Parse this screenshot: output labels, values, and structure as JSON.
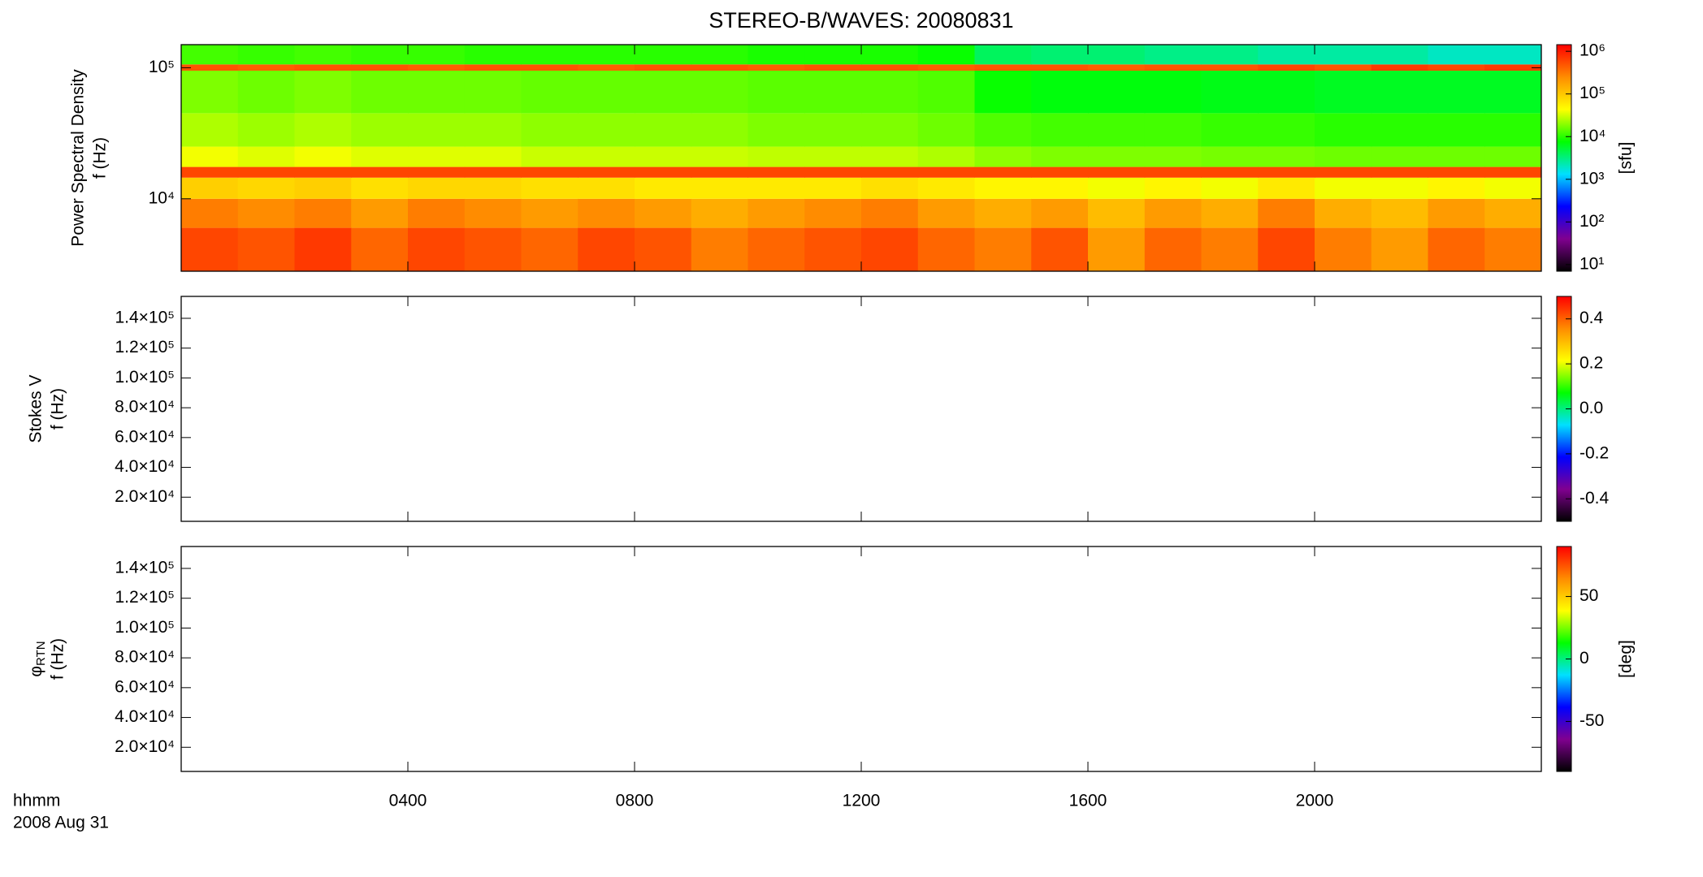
{
  "chart_data": [
    {
      "type": "heatmap",
      "title": "STEREO-B/WAVES: 20080831",
      "ylabel": [
        "Power Spectral Density",
        "f (Hz)"
      ],
      "ylog": true,
      "ylim": [
        2800,
        150000
      ],
      "yticks": [
        {
          "value": 10000,
          "label": "10⁴"
        },
        {
          "value": 100000,
          "label": "10⁵"
        }
      ],
      "xlim": [
        0,
        24
      ],
      "x_edges": [
        0,
        1,
        2,
        3,
        4,
        5,
        6,
        7,
        8,
        9,
        10,
        11,
        12,
        13,
        14,
        15,
        16,
        17,
        18,
        19,
        20,
        21,
        22,
        23,
        24
      ],
      "y_edges": [
        2800,
        6000,
        10000,
        14500,
        17500,
        25000,
        45000,
        95000,
        106000,
        150000
      ],
      "z": [
        [
          600000,
          500000,
          700000,
          400000,
          600000,
          500000,
          400000,
          600000,
          500000,
          300000,
          400000,
          500000,
          600000,
          400000,
          300000,
          500000,
          200000,
          400000,
          300000,
          600000,
          300000,
          200000,
          400000,
          300000
        ],
        [
          300000,
          250000,
          300000,
          200000,
          300000,
          250000,
          200000,
          250000,
          200000,
          150000,
          200000,
          250000,
          300000,
          200000,
          150000,
          200000,
          120000,
          200000,
          150000,
          300000,
          150000,
          120000,
          200000,
          150000
        ],
        [
          90000,
          80000,
          90000,
          70000,
          80000,
          80000,
          70000,
          70000,
          60000,
          60000,
          60000,
          60000,
          70000,
          60000,
          50000,
          50000,
          40000,
          50000,
          40000,
          60000,
          40000,
          40000,
          50000,
          40000
        ],
        [
          600000,
          600000,
          600000,
          600000,
          600000,
          600000,
          600000,
          600000,
          600000,
          600000,
          600000,
          600000,
          600000,
          600000,
          600000,
          600000,
          600000,
          600000,
          600000,
          600000,
          600000,
          600000,
          600000,
          600000
        ],
        [
          40000,
          35000,
          40000,
          35000,
          35000,
          35000,
          30000,
          30000,
          30000,
          30000,
          28000,
          28000,
          28000,
          25000,
          20000,
          18000,
          18000,
          18000,
          17000,
          17000,
          16000,
          16000,
          16000,
          16000
        ],
        [
          25000,
          22000,
          25000,
          22000,
          22000,
          22000,
          20000,
          20000,
          20000,
          20000,
          18000,
          18000,
          18000,
          16000,
          13000,
          12000,
          12000,
          12000,
          11000,
          11000,
          10000,
          10000,
          10000,
          10000
        ],
        [
          18000,
          16000,
          18000,
          16000,
          16000,
          16000,
          15000,
          15000,
          15000,
          15000,
          14000,
          14000,
          14000,
          13000,
          8000,
          7000,
          7000,
          7000,
          6500,
          6500,
          6000,
          6000,
          6000,
          6000
        ],
        [
          500000,
          450000,
          500000,
          500000,
          450000,
          500000,
          500000,
          450000,
          500000,
          500000,
          450000,
          500000,
          500000,
          450000,
          500000,
          500000,
          450000,
          500000,
          500000,
          600000,
          500000,
          700000,
          600000,
          700000
        ],
        [
          12000,
          11000,
          12000,
          11000,
          11000,
          10000,
          10000,
          10000,
          10000,
          10000,
          9000,
          9000,
          9000,
          8000,
          4000,
          3500,
          3500,
          3000,
          3000,
          2500,
          2500,
          2500,
          2000,
          2000
        ]
      ],
      "zlog": true,
      "zlim": [
        7,
        1430000
      ],
      "zticks": [
        {
          "value": 10,
          "label": "10¹"
        },
        {
          "value": 100,
          "label": "10²"
        },
        {
          "value": 1000,
          "label": "10³"
        },
        {
          "value": 10000,
          "label": "10⁴"
        },
        {
          "value": 100000,
          "label": "10⁵"
        },
        {
          "value": 1000000,
          "label": "10⁶"
        }
      ],
      "colorbar_label": "[sfu]",
      "colorscale": [
        "#000000",
        "#800090",
        "#0000ff",
        "#00e0ff",
        "#00ff00",
        "#ffff00",
        "#ff8c00",
        "#ff0000"
      ]
    },
    {
      "type": "heatmap",
      "ylabel": [
        "Stokes V",
        "f (Hz)"
      ],
      "ylog": false,
      "ylim": [
        3800,
        154700
      ],
      "yticks": [
        {
          "value": 20000,
          "label": "2.0×10⁴"
        },
        {
          "value": 40000,
          "label": "4.0×10⁴"
        },
        {
          "value": 60000,
          "label": "6.0×10⁴"
        },
        {
          "value": 80000,
          "label": "8.0×10⁴"
        },
        {
          "value": 100000,
          "label": "1.0×10⁵"
        },
        {
          "value": 120000,
          "label": "1.2×10⁵"
        },
        {
          "value": 140000,
          "label": "1.4×10⁵"
        }
      ],
      "xlim": [
        0,
        24
      ],
      "zlog": false,
      "zlim": [
        -0.5,
        0.5
      ],
      "zticks": [
        -0.4,
        -0.2,
        {
          "value": 0,
          "label": "0.0"
        },
        0.2,
        0.4
      ],
      "colorscale": [
        "#000000",
        "#800090",
        "#0000ff",
        "#00e0ff",
        "#00ff00",
        "#ffff00",
        "#ff8c00",
        "#ff0000"
      ]
    },
    {
      "type": "heatmap",
      "ylabel_symbol": "φ",
      "ylabel_subscript": "RTN",
      "ylabel": [
        "f (Hz)"
      ],
      "ylog": false,
      "ylim": [
        3800,
        154700
      ],
      "yticks": [
        {
          "value": 20000,
          "label": "2.0×10⁴"
        },
        {
          "value": 40000,
          "label": "4.0×10⁴"
        },
        {
          "value": 60000,
          "label": "6.0×10⁴"
        },
        {
          "value": 80000,
          "label": "8.0×10⁴"
        },
        {
          "value": 100000,
          "label": "1.0×10⁵"
        },
        {
          "value": 120000,
          "label": "1.2×10⁵"
        },
        {
          "value": 140000,
          "label": "1.4×10⁵"
        }
      ],
      "xlim": [
        0,
        24
      ],
      "xticks": [
        {
          "value": 4,
          "label": "0400"
        },
        {
          "value": 8,
          "label": "0800"
        },
        {
          "value": 12,
          "label": "1200"
        },
        {
          "value": 16,
          "label": "1600"
        },
        {
          "value": 20,
          "label": "2000"
        }
      ],
      "xlabel": "hhmm",
      "date": "2008 Aug 31",
      "zlog": false,
      "zlim": [
        -90,
        90
      ],
      "zticks": [
        -50,
        0,
        50
      ],
      "colorbar_label": "[deg]",
      "colorscale": [
        "#000000",
        "#800090",
        "#0000ff",
        "#00e0ff",
        "#00ff00",
        "#ffff00",
        "#ff8c00",
        "#ff0000"
      ]
    }
  ]
}
